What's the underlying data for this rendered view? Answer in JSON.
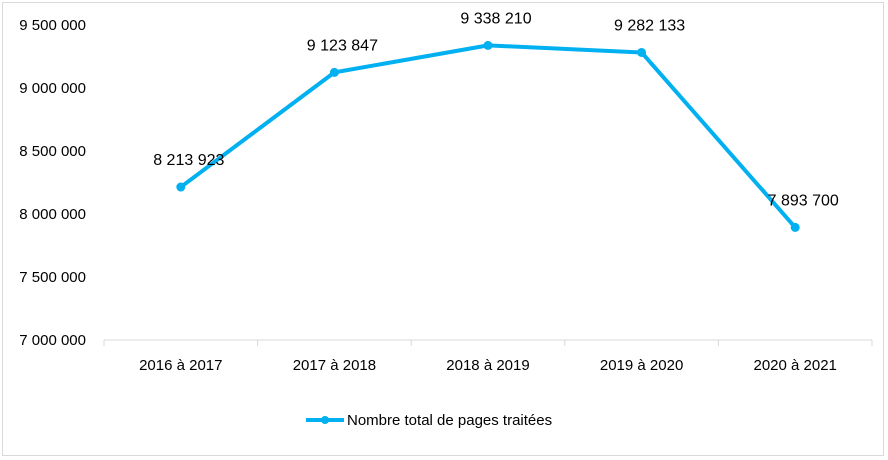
{
  "chart_data": {
    "type": "line",
    "title": "",
    "xlabel": "",
    "ylabel": "",
    "categories": [
      "2016 à 2017",
      "2017 à 2018",
      "2018 à 2019",
      "2019 à 2020",
      "2020 à 2021"
    ],
    "series": [
      {
        "name": "Nombre total de pages traitées",
        "values": [
          8213923,
          9123847,
          9338210,
          9282133,
          7893700
        ],
        "value_labels": [
          "8 213 923",
          "9 123 847",
          "9 338 210",
          "9 282 133",
          "7 893 700"
        ],
        "color": "#00b0f0"
      }
    ],
    "ylim": [
      7000000,
      9500000
    ],
    "yticks": [
      7000000,
      7500000,
      8000000,
      8500000,
      9000000,
      9500000
    ],
    "ytick_labels": [
      "7 000 000",
      "7 500 000",
      "8 000 000",
      "8 500 000",
      "9 000 000",
      "9 500 000"
    ],
    "grid": false,
    "legend": "bottom"
  }
}
